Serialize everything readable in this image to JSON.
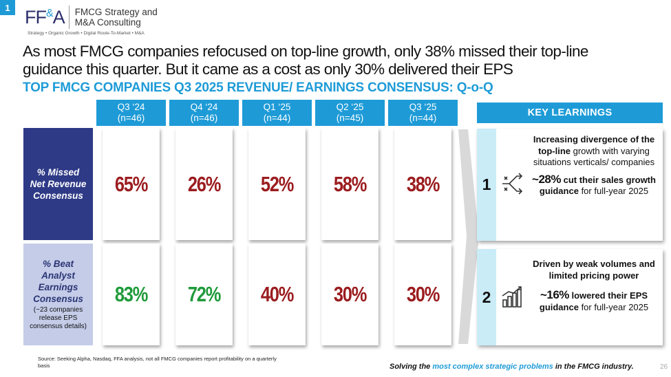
{
  "slide_number": "1",
  "logo": {
    "mark_left": "FF",
    "mark_amp": "&",
    "mark_right": "A",
    "name_line1": "FMCG Strategy and",
    "name_line2": "M&A Consulting",
    "tagline": "Strategy • Organic Growth • Digital Route-To-Market • M&A"
  },
  "headline": "As most FMCG companies refocused on top-line growth, only 38% missed their top-line guidance this quarter. But it came as a cost as only 30% delivered their EPS",
  "subheadline": "TOP FMCG COMPANIES Q3 2025 REVENUE/ EARNINGS CONSENSUS: Q-o-Q",
  "columns": [
    {
      "quarter": "Q3 ‘24",
      "n": "(n=46)"
    },
    {
      "quarter": "Q4 ‘24",
      "n": "(n=46)"
    },
    {
      "quarter": "Q1 ‘25",
      "n": "(n=44)"
    },
    {
      "quarter": "Q2 ‘25",
      "n": "(n=45)"
    },
    {
      "quarter": "Q3 ‘25",
      "n": "(n=44)"
    }
  ],
  "rows": {
    "missed": {
      "label": "% Missed Net Revenue Consensus",
      "values": [
        "65%",
        "26%",
        "52%",
        "58%",
        "38%"
      ],
      "colors": [
        "#9b1c1f",
        "#9b1c1f",
        "#9b1c1f",
        "#9b1c1f",
        "#9b1c1f"
      ]
    },
    "beat": {
      "label": "% Beat Analyst Earnings Consensus",
      "note": "(~23 companies release EPS consensus details)",
      "values": [
        "83%",
        "72%",
        "40%",
        "30%",
        "30%"
      ],
      "colors": [
        "#1f9a3a",
        "#1f9a3a",
        "#9b1c1f",
        "#9b1c1f",
        "#9b1c1f"
      ]
    }
  },
  "key_learnings": {
    "header": "KEY LEARNINGS",
    "items": [
      {
        "number": "1",
        "icon": "diverging-arrows-icon",
        "line1_bold": "Increasing divergence of the top-line",
        "line1_rest": " growth with varying situations verticals/ companies",
        "stat": "~28%",
        "line2_bold": " cut their sales growth guidance",
        "line2_rest": " for full-year 2025"
      },
      {
        "number": "2",
        "icon": "bar-chart-icon",
        "line1_bold": "Driven by weak volumes and limited pricing power",
        "stat": "~16%",
        "line2_bold": " lowered their EPS guidance",
        "line2_rest": " for full-year 2025"
      }
    ]
  },
  "source": "Source: Seeking Alpha, Nasdaq, FFA analysis, not all FMCG companies report profitability on a quarterly basis",
  "footer": {
    "pre": "Solving the ",
    "highlight": "most complex strategic problems",
    "post": " in the FMCG industry.",
    "page": "26"
  },
  "colors": {
    "accent": "#1e9bd7",
    "navy": "#2e3a86",
    "lavender": "#c4cce8",
    "red": "#9b1c1f",
    "green": "#1f9a3a"
  }
}
